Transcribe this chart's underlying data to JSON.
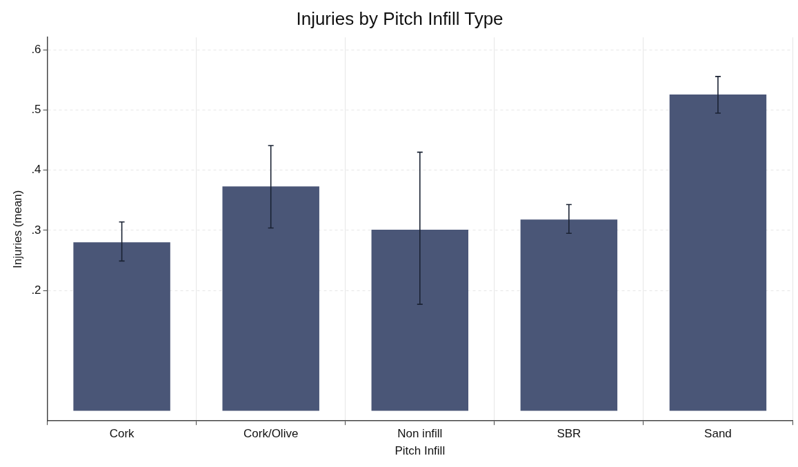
{
  "chart_data": {
    "type": "bar",
    "title": "Injuries by Pitch Infill Type",
    "xlabel": "Pitch Infill",
    "ylabel": "Injuries (mean)",
    "categories": [
      "Cork",
      "Cork/Olive",
      "Non infill",
      "SBR",
      "Sand"
    ],
    "values": [
      0.28,
      0.373,
      0.301,
      0.318,
      0.526
    ],
    "errors": [
      [
        0.249,
        0.314
      ],
      [
        0.304,
        0.441
      ],
      [
        0.177,
        0.43
      ],
      [
        0.295,
        0.343
      ],
      [
        0.495,
        0.556
      ]
    ],
    "color": "#4a5677",
    "ylim": [
      -0.017,
      0.621
    ],
    "yticks": [
      {
        "value": 0.2,
        "label": ".2"
      },
      {
        "value": 0.3,
        "label": ".3"
      },
      {
        "value": 0.4,
        "label": ".4"
      },
      {
        "value": 0.5,
        "label": ".5"
      },
      {
        "value": 0.6,
        "label": ".6"
      }
    ],
    "grid": true
  }
}
